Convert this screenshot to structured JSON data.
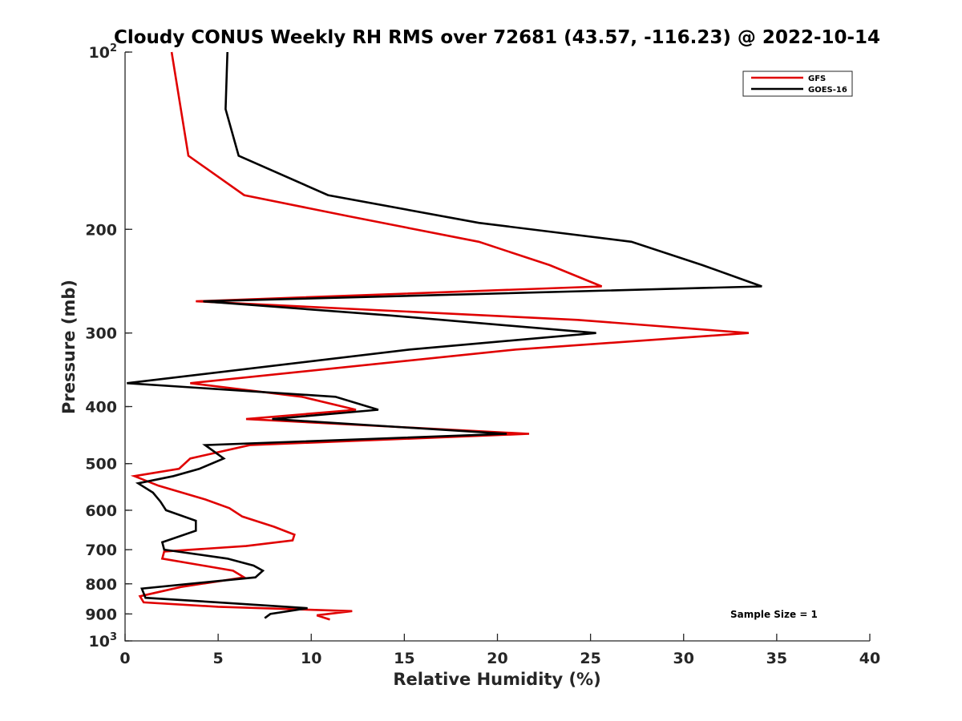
{
  "chart_data": {
    "type": "line",
    "title": "Cloudy CONUS Weekly RH RMS over 72681 (43.57, -116.23) @ 2022-10-14",
    "xlabel": "Relative Humidity (%)",
    "ylabel": "Pressure (mb)",
    "xlim": [
      0,
      40
    ],
    "ylim": [
      1000,
      100
    ],
    "yscale": "log",
    "x_ticks": [
      "0",
      "5",
      "10",
      "15",
      "20",
      "25",
      "30",
      "35",
      "40"
    ],
    "x_tick_values": [
      0,
      5,
      10,
      15,
      20,
      25,
      30,
      35,
      40
    ],
    "y_ticks": [
      {
        "value": 100,
        "base": "10",
        "exp": "2"
      },
      {
        "value": 200,
        "base": "200",
        "exp": ""
      },
      {
        "value": 300,
        "base": "300",
        "exp": ""
      },
      {
        "value": 400,
        "base": "400",
        "exp": ""
      },
      {
        "value": 500,
        "base": "500",
        "exp": ""
      },
      {
        "value": 600,
        "base": "600",
        "exp": ""
      },
      {
        "value": 700,
        "base": "700",
        "exp": ""
      },
      {
        "value": 800,
        "base": "800",
        "exp": ""
      },
      {
        "value": 900,
        "base": "900",
        "exp": ""
      },
      {
        "value": 1000,
        "base": "10",
        "exp": "3"
      }
    ],
    "legend": {
      "position": "top-right"
    },
    "annotation": "Sample Size = 1",
    "series": [
      {
        "name": "GFS",
        "color": "#e00000",
        "points": [
          [
            2.5,
            100
          ],
          [
            3.4,
            150
          ],
          [
            6.4,
            175
          ],
          [
            12.0,
            190
          ],
          [
            19.0,
            210
          ],
          [
            22.8,
            230
          ],
          [
            25.6,
            250
          ],
          [
            3.8,
            265
          ],
          [
            24.3,
            285
          ],
          [
            33.5,
            300
          ],
          [
            21.0,
            320
          ],
          [
            3.5,
            365
          ],
          [
            9.5,
            385
          ],
          [
            12.4,
            405
          ],
          [
            6.5,
            420
          ],
          [
            21.7,
            445
          ],
          [
            6.7,
            465
          ],
          [
            3.5,
            490
          ],
          [
            2.9,
            510
          ],
          [
            0.5,
            525
          ],
          [
            1.8,
            545
          ],
          [
            4.3,
            575
          ],
          [
            5.6,
            595
          ],
          [
            6.3,
            615
          ],
          [
            8.0,
            640
          ],
          [
            9.1,
            660
          ],
          [
            9.0,
            675
          ],
          [
            6.5,
            690
          ],
          [
            2.1,
            705
          ],
          [
            2.0,
            725
          ],
          [
            4.2,
            745
          ],
          [
            5.8,
            760
          ],
          [
            6.4,
            780
          ],
          [
            3.0,
            810
          ],
          [
            0.8,
            840
          ],
          [
            1.0,
            860
          ],
          [
            5.0,
            875
          ],
          [
            12.2,
            890
          ],
          [
            10.3,
            905
          ],
          [
            11.0,
            920
          ]
        ]
      },
      {
        "name": "GOES-16",
        "color": "#000000",
        "points": [
          [
            5.5,
            100
          ],
          [
            5.4,
            125
          ],
          [
            6.1,
            150
          ],
          [
            10.9,
            175
          ],
          [
            19.0,
            195
          ],
          [
            27.2,
            210
          ],
          [
            31.0,
            230
          ],
          [
            34.2,
            250
          ],
          [
            4.2,
            265
          ],
          [
            14.2,
            280
          ],
          [
            25.3,
            300
          ],
          [
            15.3,
            320
          ],
          [
            0.1,
            365
          ],
          [
            11.3,
            385
          ],
          [
            13.6,
            405
          ],
          [
            7.9,
            420
          ],
          [
            20.5,
            445
          ],
          [
            4.3,
            465
          ],
          [
            5.3,
            490
          ],
          [
            4.0,
            510
          ],
          [
            2.6,
            525
          ],
          [
            0.7,
            540
          ],
          [
            1.5,
            560
          ],
          [
            1.9,
            580
          ],
          [
            2.2,
            600
          ],
          [
            3.8,
            625
          ],
          [
            3.8,
            650
          ],
          [
            2.0,
            680
          ],
          [
            2.1,
            700
          ],
          [
            5.5,
            725
          ],
          [
            6.9,
            745
          ],
          [
            7.4,
            760
          ],
          [
            7.0,
            780
          ],
          [
            0.9,
            815
          ],
          [
            1.1,
            845
          ],
          [
            5.0,
            860
          ],
          [
            9.8,
            880
          ],
          [
            7.8,
            900
          ],
          [
            7.5,
            915
          ]
        ]
      }
    ]
  }
}
